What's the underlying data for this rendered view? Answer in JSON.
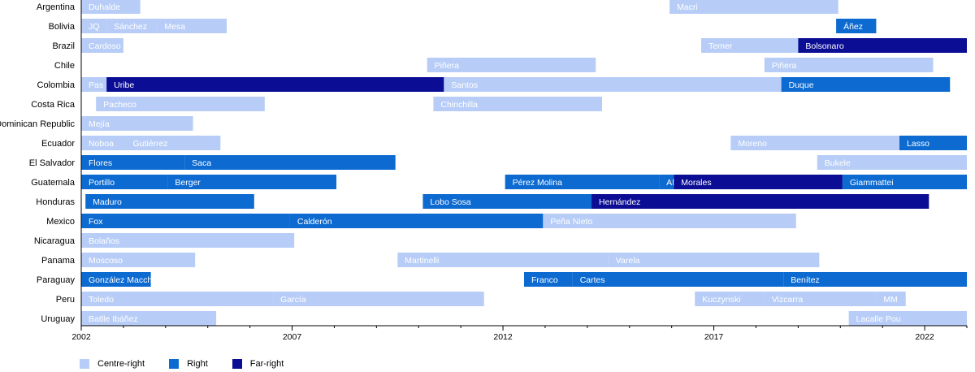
{
  "chart_data": {
    "type": "timeline",
    "x_ticks": [
      2002,
      2007,
      2012,
      2017,
      2022
    ],
    "xlim": [
      2002,
      2023
    ],
    "legend": [
      {
        "key": "centre-right",
        "label": "Centre-right",
        "color": "#b7cdf7"
      },
      {
        "key": "right",
        "label": "Right",
        "color": "#0c6ad1"
      },
      {
        "key": "far-right",
        "label": "Far-right",
        "color": "#0b0d94"
      }
    ],
    "countries": [
      {
        "name": "Argentina",
        "terms": [
          {
            "label": "Duhalde",
            "start": 2002.0,
            "end": 2003.4,
            "type": "centre-right"
          },
          {
            "label": "Macri",
            "start": 2015.95,
            "end": 2019.95,
            "type": "centre-right"
          }
        ]
      },
      {
        "name": "Bolivia",
        "terms": [
          {
            "label": "JQ",
            "start": 2002.0,
            "end": 2002.6,
            "type": "centre-right"
          },
          {
            "label": "Sánchez",
            "start": 2002.6,
            "end": 2003.8,
            "type": "centre-right"
          },
          {
            "label": "Mesa",
            "start": 2003.8,
            "end": 2005.45,
            "type": "centre-right"
          },
          {
            "label": "Áñez",
            "start": 2019.9,
            "end": 2020.85,
            "type": "right"
          }
        ]
      },
      {
        "name": "Brazil",
        "terms": [
          {
            "label": "Cardoso",
            "start": 2002.0,
            "end": 2003.0,
            "type": "centre-right"
          },
          {
            "label": "Temer",
            "start": 2016.7,
            "end": 2019.0,
            "type": "centre-right"
          },
          {
            "label": "Bolsonaro",
            "start": 2019.0,
            "end": 2023.0,
            "type": "far-right"
          }
        ]
      },
      {
        "name": "Chile",
        "terms": [
          {
            "label": "Piñera",
            "start": 2010.2,
            "end": 2014.2,
            "type": "centre-right"
          },
          {
            "label": "Piñera",
            "start": 2018.2,
            "end": 2022.2,
            "type": "centre-right"
          }
        ]
      },
      {
        "name": "Colombia",
        "terms": [
          {
            "label": "Pas",
            "start": 2002.0,
            "end": 2002.6,
            "type": "centre-right"
          },
          {
            "label": "Uribe",
            "start": 2002.6,
            "end": 2010.6,
            "type": "far-right"
          },
          {
            "label": "Santos",
            "start": 2010.6,
            "end": 2018.6,
            "type": "centre-right"
          },
          {
            "label": "Duque",
            "start": 2018.6,
            "end": 2022.6,
            "type": "right"
          }
        ]
      },
      {
        "name": "Costa Rica",
        "terms": [
          {
            "label": "Pacheco",
            "start": 2002.35,
            "end": 2006.35,
            "type": "centre-right"
          },
          {
            "label": "Chinchilla",
            "start": 2010.35,
            "end": 2014.35,
            "type": "centre-right"
          }
        ]
      },
      {
        "name": "Dominican Republic",
        "terms": [
          {
            "label": "Mejía",
            "start": 2002.0,
            "end": 2004.65,
            "type": "centre-right"
          }
        ]
      },
      {
        "name": "Ecuador",
        "terms": [
          {
            "label": "Noboa",
            "start": 2002.0,
            "end": 2003.05,
            "type": "centre-right"
          },
          {
            "label": "Gutiérrez",
            "start": 2003.05,
            "end": 2005.3,
            "type": "centre-right"
          },
          {
            "label": "Moreno",
            "start": 2017.4,
            "end": 2021.4,
            "type": "centre-right"
          },
          {
            "label": "Lasso",
            "start": 2021.4,
            "end": 2023.0,
            "type": "right"
          }
        ]
      },
      {
        "name": "El Salvador",
        "terms": [
          {
            "label": "Flores",
            "start": 2002.0,
            "end": 2004.45,
            "type": "right"
          },
          {
            "label": "Saca",
            "start": 2004.45,
            "end": 2009.45,
            "type": "right"
          },
          {
            "label": "Bukele",
            "start": 2019.45,
            "end": 2023.0,
            "type": "centre-right"
          }
        ]
      },
      {
        "name": "Guatemala",
        "terms": [
          {
            "label": "Portillo",
            "start": 2002.0,
            "end": 2004.05,
            "type": "right"
          },
          {
            "label": "Berger",
            "start": 2004.05,
            "end": 2008.05,
            "type": "right"
          },
          {
            "label": "Pérez Molina",
            "start": 2012.05,
            "end": 2015.7,
            "type": "right"
          },
          {
            "label": "AM",
            "start": 2015.7,
            "end": 2016.05,
            "type": "right"
          },
          {
            "label": "Morales",
            "start": 2016.05,
            "end": 2020.05,
            "type": "far-right"
          },
          {
            "label": "Giammattei",
            "start": 2020.05,
            "end": 2023.0,
            "type": "right"
          }
        ]
      },
      {
        "name": "Honduras",
        "terms": [
          {
            "label": "Maduro",
            "start": 2002.1,
            "end": 2006.1,
            "type": "right"
          },
          {
            "label": "Lobo Sosa",
            "start": 2010.1,
            "end": 2014.1,
            "type": "right"
          },
          {
            "label": "Hernández",
            "start": 2014.1,
            "end": 2022.1,
            "type": "far-right"
          }
        ]
      },
      {
        "name": "Mexico",
        "terms": [
          {
            "label": "Fox",
            "start": 2002.0,
            "end": 2006.95,
            "type": "right"
          },
          {
            "label": "Calderón",
            "start": 2006.95,
            "end": 2012.95,
            "type": "right"
          },
          {
            "label": "Peña Nieto",
            "start": 2012.95,
            "end": 2018.95,
            "type": "centre-right"
          }
        ]
      },
      {
        "name": "Nicaragua",
        "terms": [
          {
            "label": "Bolaños",
            "start": 2002.0,
            "end": 2007.05,
            "type": "centre-right"
          }
        ]
      },
      {
        "name": "Panama",
        "terms": [
          {
            "label": "Moscoso",
            "start": 2002.0,
            "end": 2004.7,
            "type": "centre-right"
          },
          {
            "label": "Martinelli",
            "start": 2009.5,
            "end": 2014.5,
            "type": "centre-right"
          },
          {
            "label": "Varela",
            "start": 2014.5,
            "end": 2019.5,
            "type": "centre-right"
          }
        ]
      },
      {
        "name": "Paraguay",
        "terms": [
          {
            "label": "González Macchi",
            "start": 2002.0,
            "end": 2003.65,
            "type": "right"
          },
          {
            "label": "Franco",
            "start": 2012.5,
            "end": 2013.65,
            "type": "right"
          },
          {
            "label": "Cartes",
            "start": 2013.65,
            "end": 2018.65,
            "type": "right"
          },
          {
            "label": "Benítez",
            "start": 2018.65,
            "end": 2023.0,
            "type": "right"
          }
        ]
      },
      {
        "name": "Peru",
        "terms": [
          {
            "label": "Toledo",
            "start": 2002.0,
            "end": 2006.55,
            "type": "centre-right"
          },
          {
            "label": "García",
            "start": 2006.55,
            "end": 2011.55,
            "type": "centre-right"
          },
          {
            "label": "Kuczynski",
            "start": 2016.55,
            "end": 2018.2,
            "type": "centre-right"
          },
          {
            "label": "Vizcarra",
            "start": 2018.2,
            "end": 2020.85,
            "type": "centre-right"
          },
          {
            "label": "MM",
            "start": 2020.85,
            "end": 2021.55,
            "type": "centre-right"
          }
        ]
      },
      {
        "name": "Uruguay",
        "terms": [
          {
            "label": "Batlle Ibáñez",
            "start": 2002.0,
            "end": 2005.2,
            "type": "centre-right"
          },
          {
            "label": "Lacalle Pou",
            "start": 2020.2,
            "end": 2023.0,
            "type": "centre-right"
          }
        ]
      }
    ]
  }
}
